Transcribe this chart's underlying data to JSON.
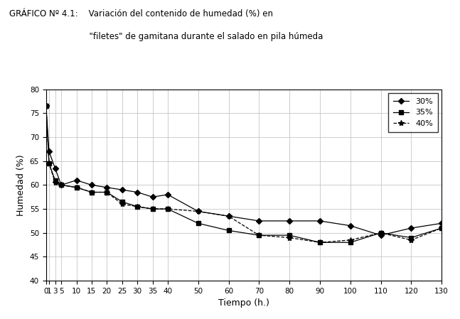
{
  "title_line1": "GRÁFICO Nº 4.1:    Variación del contenido de humedad (%) en",
  "title_line2": "                              \"filetes\" de gamitana durante el salado en pila húmeda",
  "xlabel": "Tiempo (h.)",
  "ylabel": "Humedad (%)",
  "xlim": [
    0,
    130
  ],
  "ylim": [
    40,
    80
  ],
  "yticks": [
    40,
    45,
    50,
    55,
    60,
    65,
    70,
    75,
    80
  ],
  "xticks": [
    0,
    1,
    3,
    5,
    10,
    15,
    20,
    25,
    30,
    35,
    40,
    50,
    60,
    70,
    80,
    90,
    100,
    110,
    120,
    130
  ],
  "series": [
    {
      "label": "30%",
      "color": "#000000",
      "marker": "D",
      "markersize": 4,
      "linestyle": "-",
      "x": [
        0,
        1,
        3,
        5,
        10,
        15,
        20,
        25,
        30,
        35,
        40,
        50,
        60,
        70,
        80,
        90,
        100,
        110,
        120,
        130
      ],
      "y": [
        76.5,
        67.0,
        63.5,
        60.0,
        61.0,
        60.0,
        59.5,
        59.0,
        58.5,
        57.5,
        58.0,
        54.5,
        53.5,
        52.5,
        52.5,
        52.5,
        51.5,
        49.5,
        51.0,
        52.0
      ]
    },
    {
      "label": "35%",
      "color": "#000000",
      "marker": "s",
      "markersize": 4,
      "linestyle": "-",
      "x": [
        0,
        1,
        3,
        5,
        10,
        15,
        20,
        25,
        30,
        35,
        40,
        50,
        60,
        70,
        80,
        90,
        100,
        110,
        120,
        130
      ],
      "y": [
        76.5,
        64.5,
        61.0,
        60.0,
        59.5,
        58.5,
        58.5,
        56.5,
        55.5,
        55.0,
        55.0,
        52.0,
        50.5,
        49.5,
        49.5,
        48.0,
        48.0,
        50.0,
        49.0,
        51.0
      ]
    },
    {
      "label": "40%",
      "color": "#000000",
      "marker": "*",
      "markersize": 6,
      "linestyle": "--",
      "x": [
        0,
        1,
        3,
        5,
        10,
        15,
        20,
        25,
        30,
        35,
        40,
        50,
        60,
        70,
        80,
        90,
        100,
        110,
        120,
        130
      ],
      "y": [
        76.5,
        64.5,
        60.5,
        60.0,
        59.5,
        58.5,
        58.5,
        56.0,
        55.5,
        55.0,
        55.0,
        54.5,
        53.5,
        49.5,
        49.0,
        48.0,
        48.5,
        50.0,
        48.5,
        51.0
      ]
    }
  ],
  "legend_loc": "upper right",
  "background_color": "#ffffff",
  "grid_color": "#bbbbbb"
}
